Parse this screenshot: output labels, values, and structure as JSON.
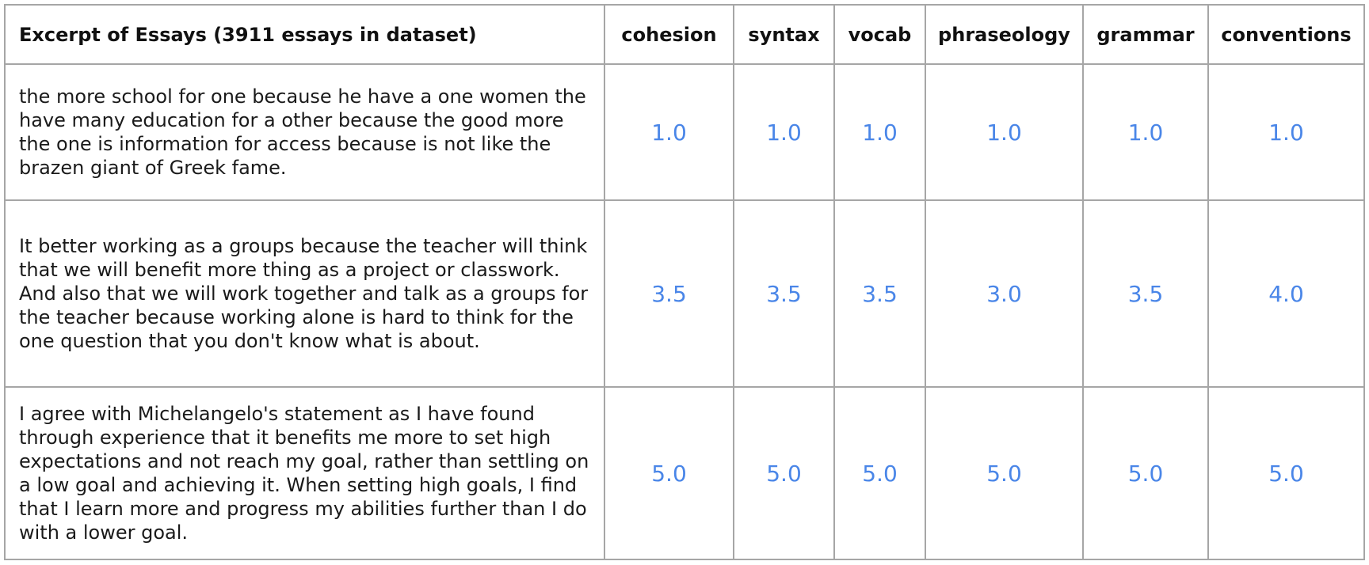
{
  "table": {
    "headers": [
      "Excerpt of Essays (3911 essays in dataset)",
      "cohesion",
      "syntax",
      "vocab",
      "phraseology",
      "grammar",
      "conventions"
    ],
    "rows": [
      {
        "text": "the more school for one because he have a one women the have many education for a other because the good more the one is information for access because is not like the brazen giant of Greek fame.",
        "scores": [
          "1.0",
          "1.0",
          "1.0",
          "1.0",
          "1.0",
          "1.0"
        ]
      },
      {
        "text": "It better working as a groups because the teacher will think that we will benefit more thing as a project or classwork. And also that we will work together and talk as a groups for the teacher because working alone is hard to think for the one question that you don't know what is about.",
        "scores": [
          "3.5",
          "3.5",
          "3.5",
          "3.0",
          "3.5",
          "4.0"
        ]
      },
      {
        "text": "I agree with Michelangelo's statement as I have found through experience that it benefits me more to set high expectations and not reach my goal, rather than settling on a low goal and achieving it. When setting high goals, I find that I learn more and progress my abilities further than I do with a lower goal.",
        "scores": [
          "5.0",
          "5.0",
          "5.0",
          "5.0",
          "5.0",
          "5.0"
        ]
      }
    ]
  },
  "colors": {
    "score_text": "#4a86e8",
    "grid_border": "#a6a6a6"
  }
}
